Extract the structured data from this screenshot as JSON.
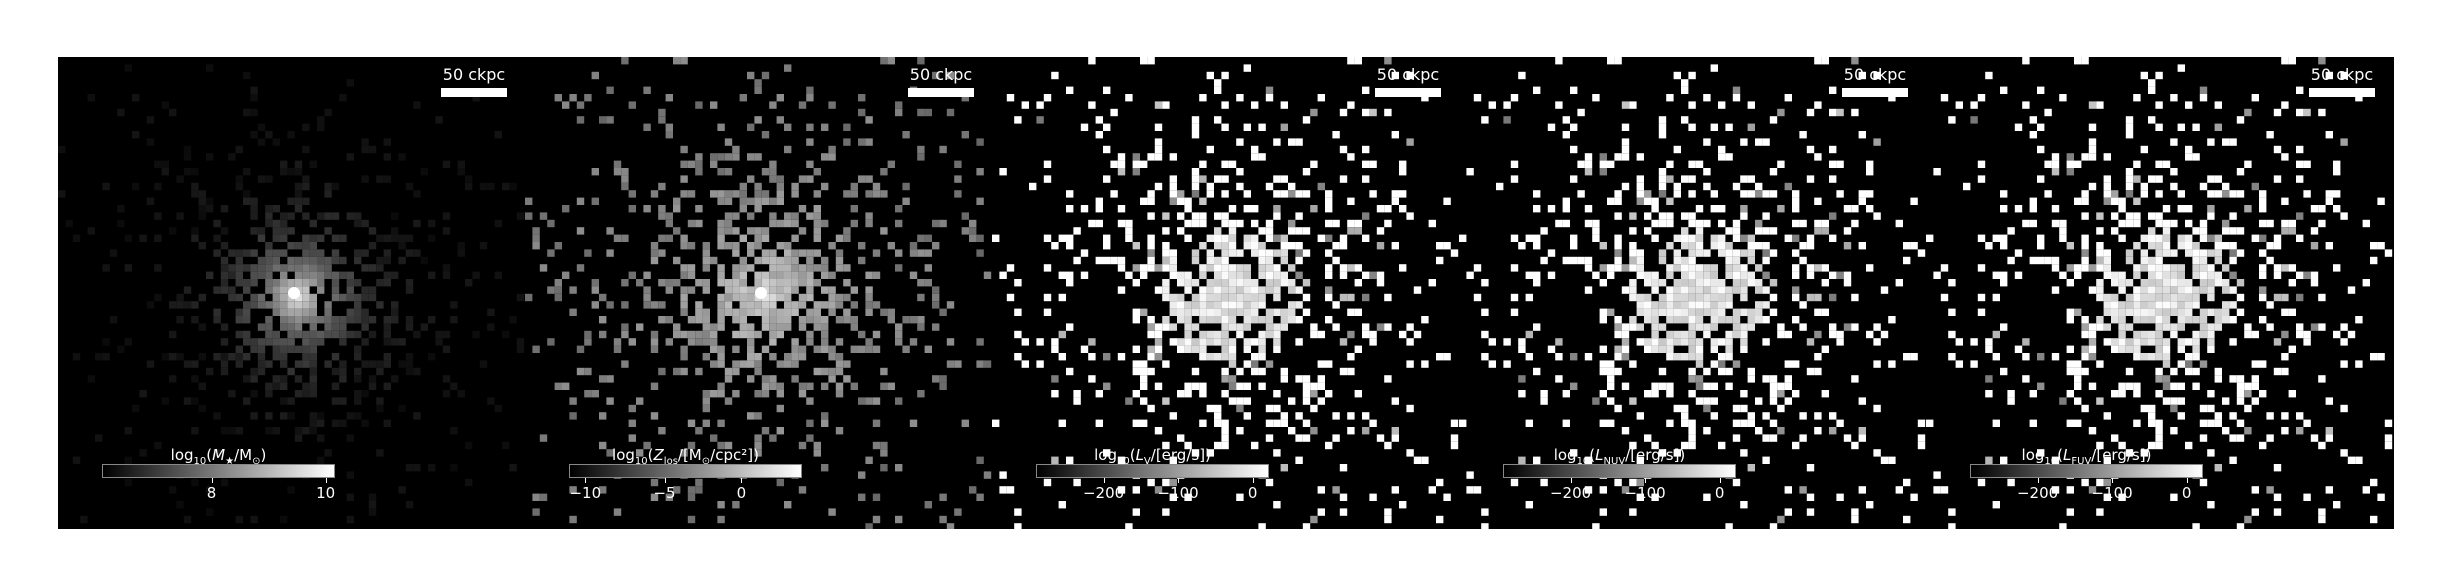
{
  "panels": [
    {
      "id": "stellar-mass",
      "scale_label": "50 ckpc",
      "colorbar": {
        "prefix": "log",
        "base": "10",
        "open": "(",
        "main": "M",
        "sub1": "★",
        "slash": "/M",
        "sub2": "⊙",
        "close": ")"
      },
      "ticks": [
        {
          "label": "8",
          "frac": 0.47
        },
        {
          "label": "10",
          "frac": 0.96
        }
      ],
      "style": "smooth"
    },
    {
      "id": "metallicity",
      "scale_label": "50 ckpc",
      "colorbar": {
        "prefix": "log",
        "base": "10",
        "open": "(",
        "main": "Z",
        "sub1": "los",
        "slash": "/[M",
        "sub2": "⊙",
        "close": "/cpc²])"
      },
      "ticks": [
        {
          "label": "−10",
          "frac": 0.07
        },
        {
          "label": "−5",
          "frac": 0.41
        },
        {
          "label": "0",
          "frac": 0.74
        }
      ],
      "style": "grey"
    },
    {
      "id": "luminosity-v",
      "scale_label": "50 ckpc",
      "colorbar": {
        "prefix": "log",
        "base": "10",
        "open": "(",
        "main": "L",
        "sub1": "V",
        "slash": "/[erg/s])",
        "sub2": "",
        "close": ""
      },
      "ticks": [
        {
          "label": "−200",
          "frac": 0.29
        },
        {
          "label": "−100",
          "frac": 0.61
        },
        {
          "label": "0",
          "frac": 0.93
        }
      ],
      "style": "bright"
    },
    {
      "id": "luminosity-nuv",
      "scale_label": "50 ckpc",
      "colorbar": {
        "prefix": "log",
        "base": "10",
        "open": "(",
        "main": "L",
        "sub1": "NUV",
        "slash": "/[erg/s])",
        "sub2": "",
        "close": ""
      },
      "ticks": [
        {
          "label": "−200",
          "frac": 0.29
        },
        {
          "label": "−100",
          "frac": 0.61
        },
        {
          "label": "0",
          "frac": 0.93
        }
      ],
      "style": "bright"
    },
    {
      "id": "luminosity-fuv",
      "scale_label": "50 ckpc",
      "colorbar": {
        "prefix": "log",
        "base": "10",
        "open": "(",
        "main": "L",
        "sub1": "FUV",
        "slash": "/[erg/s])",
        "sub2": "",
        "close": ""
      },
      "ticks": [
        {
          "label": "−200",
          "frac": 0.29
        },
        {
          "label": "−100",
          "frac": 0.61
        },
        {
          "label": "0",
          "frac": 0.93
        }
      ],
      "style": "bright"
    }
  ]
}
